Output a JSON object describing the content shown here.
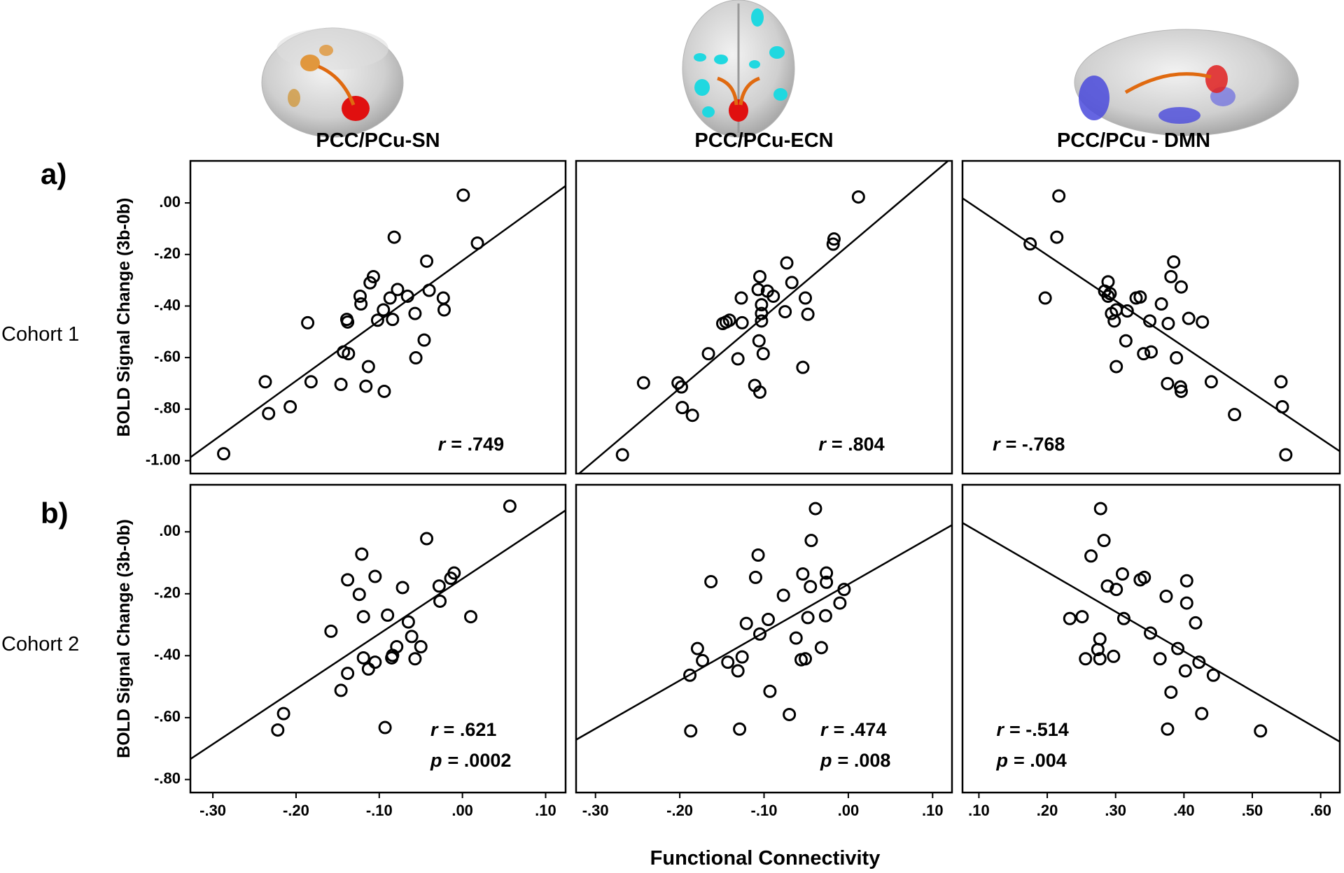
{
  "panel_labels": [
    "a)",
    "b)"
  ],
  "row_labels": [
    "Cohort 1",
    "Cohort 2"
  ],
  "y_axis_label": "BOLD Signal Change (3b-0b)",
  "x_axis_label": "Functional Connectivity",
  "chart_data": [
    {
      "type": "scatter",
      "title": "PCC/PCu-SN",
      "regression": true,
      "x": [
        0.001,
        0.018,
        -0.082,
        -0.043,
        -0.107,
        -0.111,
        -0.123,
        -0.078,
        -0.087,
        -0.066,
        -0.04,
        -0.023,
        -0.022,
        -0.095,
        -0.122,
        -0.139,
        -0.138,
        -0.102,
        -0.084,
        -0.057,
        -0.186,
        -0.046,
        -0.056,
        -0.143,
        -0.137,
        -0.113,
        -0.182,
        -0.237,
        -0.146,
        -0.116,
        -0.094,
        -0.207,
        -0.233,
        -0.287
      ],
      "y": [
        0.03,
        -0.156,
        -0.133,
        -0.226,
        -0.286,
        -0.31,
        -0.362,
        -0.336,
        -0.369,
        -0.362,
        -0.339,
        -0.369,
        -0.415,
        -0.415,
        -0.392,
        -0.452,
        -0.462,
        -0.455,
        -0.452,
        -0.429,
        -0.465,
        -0.532,
        -0.601,
        -0.578,
        -0.585,
        -0.635,
        -0.694,
        -0.694,
        -0.704,
        -0.711,
        -0.731,
        -0.791,
        -0.817,
        -0.973
      ],
      "xlim": [
        -0.327,
        0.124
      ],
      "ylim": [
        -1.05,
        0.163
      ],
      "yticks": [
        {
          "value": 0,
          "label": ".00"
        },
        {
          "value": -0.2,
          "label": "-.20"
        },
        {
          "value": -0.4,
          "label": "-.40"
        },
        {
          "value": -0.6,
          "label": "-.60"
        },
        {
          "value": -0.8,
          "label": "-.80"
        },
        {
          "value": -1.0,
          "label": "-1.00"
        }
      ],
      "annotations": [
        [
          "r",
          "= .749"
        ]
      ]
    },
    {
      "type": "scatter",
      "title": "PCC/PCu-ECN",
      "regression": true,
      "x": [
        0.012,
        -0.017,
        -0.018,
        -0.073,
        -0.105,
        -0.067,
        -0.107,
        -0.096,
        -0.089,
        -0.127,
        -0.103,
        -0.051,
        -0.103,
        -0.075,
        -0.048,
        -0.103,
        -0.126,
        -0.145,
        -0.141,
        -0.149,
        -0.106,
        -0.101,
        -0.166,
        -0.131,
        -0.054,
        -0.243,
        -0.202,
        -0.198,
        -0.197,
        -0.185,
        -0.111,
        -0.105,
        -0.268
      ],
      "y": [
        0.023,
        -0.14,
        -0.16,
        -0.233,
        -0.286,
        -0.309,
        -0.336,
        -0.342,
        -0.362,
        -0.369,
        -0.395,
        -0.369,
        -0.429,
        -0.422,
        -0.432,
        -0.458,
        -0.465,
        -0.462,
        -0.455,
        -0.468,
        -0.535,
        -0.585,
        -0.585,
        -0.605,
        -0.638,
        -0.698,
        -0.698,
        -0.714,
        -0.794,
        -0.824,
        -0.708,
        -0.734,
        -0.977
      ],
      "xlim": [
        -0.323,
        0.123
      ],
      "ylim": [
        -1.05,
        0.163
      ],
      "annotations": [
        [
          "r",
          "= .804"
        ]
      ]
    },
    {
      "type": "scatter",
      "title": "PCC/PCu - DMN",
      "regression": true,
      "x": [
        0.217,
        0.214,
        0.175,
        0.197,
        0.385,
        0.381,
        0.289,
        0.396,
        0.284,
        0.292,
        0.289,
        0.336,
        0.33,
        0.301,
        0.317,
        0.294,
        0.298,
        0.35,
        0.367,
        0.377,
        0.407,
        0.427,
        0.315,
        0.341,
        0.352,
        0.389,
        0.301,
        0.376,
        0.395,
        0.396,
        0.44,
        0.474,
        0.542,
        0.544,
        0.549
      ],
      "y": [
        0.027,
        -0.133,
        -0.159,
        -0.369,
        -0.229,
        -0.286,
        -0.306,
        -0.326,
        -0.342,
        -0.352,
        -0.362,
        -0.365,
        -0.369,
        -0.415,
        -0.419,
        -0.429,
        -0.458,
        -0.458,
        -0.392,
        -0.468,
        -0.448,
        -0.462,
        -0.535,
        -0.585,
        -0.578,
        -0.601,
        -0.635,
        -0.701,
        -0.714,
        -0.731,
        -0.694,
        -0.821,
        -0.694,
        -0.791,
        -0.977
      ],
      "xlim": [
        0.076,
        0.628
      ],
      "ylim": [
        -1.05,
        0.163
      ],
      "annotations": [
        [
          "r",
          "= -.768"
        ]
      ]
    },
    {
      "type": "scatter",
      "regression": true,
      "x": [
        0.057,
        -0.043,
        -0.01,
        -0.014,
        -0.028,
        -0.027,
        0.01,
        -0.121,
        -0.138,
        -0.105,
        -0.072,
        -0.124,
        -0.119,
        -0.09,
        -0.065,
        -0.061,
        -0.05,
        -0.057,
        -0.079,
        -0.084,
        -0.085,
        -0.158,
        -0.105,
        -0.119,
        -0.113,
        -0.138,
        -0.146,
        -0.215,
        -0.222,
        -0.093
      ],
      "y": [
        0.083,
        -0.022,
        -0.133,
        -0.15,
        -0.175,
        -0.224,
        -0.274,
        -0.072,
        -0.155,
        -0.144,
        -0.18,
        -0.202,
        -0.274,
        -0.269,
        -0.291,
        -0.338,
        -0.371,
        -0.41,
        -0.371,
        -0.399,
        -0.407,
        -0.321,
        -0.421,
        -0.407,
        -0.443,
        -0.457,
        -0.512,
        -0.587,
        -0.64,
        -0.632
      ],
      "xlim": [
        -0.327,
        0.124
      ],
      "ylim": [
        -0.842,
        0.152
      ],
      "xticks": [
        {
          "value": -0.3,
          "label": "-.30"
        },
        {
          "value": -0.2,
          "label": "-.20"
        },
        {
          "value": -0.1,
          "label": "-.10"
        },
        {
          "value": 0,
          "label": ".00"
        },
        {
          "value": 0.1,
          "label": ".10"
        }
      ],
      "yticks": [
        {
          "value": 0,
          "label": ".00"
        },
        {
          "value": -0.2,
          "label": "-.20"
        },
        {
          "value": -0.4,
          "label": "-.40"
        },
        {
          "value": -0.6,
          "label": "-.60"
        },
        {
          "value": -0.8,
          "label": "-.80"
        }
      ],
      "annotations": [
        [
          "r",
          "= .621"
        ],
        [
          "p",
          "= .0002"
        ]
      ]
    },
    {
      "type": "scatter",
      "regression": true,
      "x": [
        -0.039,
        -0.044,
        -0.107,
        -0.026,
        -0.054,
        -0.005,
        -0.026,
        -0.045,
        -0.11,
        -0.163,
        -0.077,
        -0.01,
        -0.095,
        -0.048,
        -0.027,
        -0.121,
        -0.105,
        -0.062,
        -0.032,
        -0.179,
        -0.051,
        -0.056,
        -0.126,
        -0.173,
        -0.143,
        -0.131,
        -0.188,
        -0.093,
        -0.07,
        -0.187,
        -0.129
      ],
      "y": [
        0.075,
        -0.028,
        -0.075,
        -0.133,
        -0.136,
        -0.186,
        -0.163,
        -0.177,
        -0.147,
        -0.161,
        -0.205,
        -0.23,
        -0.283,
        -0.277,
        -0.271,
        -0.296,
        -0.33,
        -0.343,
        -0.374,
        -0.377,
        -0.41,
        -0.413,
        -0.404,
        -0.416,
        -0.421,
        -0.449,
        -0.463,
        -0.515,
        -0.59,
        -0.643,
        -0.637
      ],
      "xlim": [
        -0.323,
        0.123
      ],
      "ylim": [
        -0.842,
        0.152
      ],
      "xticks": [
        {
          "value": -0.3,
          "label": "-.30"
        },
        {
          "value": -0.2,
          "label": "-.20"
        },
        {
          "value": -0.1,
          "label": "-.10"
        },
        {
          "value": 0,
          "label": ".00"
        },
        {
          "value": 0.1,
          "label": ".10"
        }
      ],
      "annotations": [
        [
          "r",
          "= .474"
        ],
        [
          "p",
          "= .008"
        ]
      ]
    },
    {
      "type": "scatter",
      "regression": true,
      "x": [
        0.278,
        0.283,
        0.264,
        0.31,
        0.342,
        0.336,
        0.404,
        0.288,
        0.301,
        0.374,
        0.404,
        0.417,
        0.233,
        0.251,
        0.312,
        0.351,
        0.277,
        0.274,
        0.391,
        0.365,
        0.256,
        0.277,
        0.297,
        0.422,
        0.402,
        0.443,
        0.381,
        0.426,
        0.376,
        0.512
      ],
      "y": [
        0.075,
        -0.028,
        -0.078,
        -0.136,
        -0.147,
        -0.155,
        -0.158,
        -0.175,
        -0.186,
        -0.208,
        -0.23,
        -0.294,
        -0.28,
        -0.274,
        -0.28,
        -0.327,
        -0.346,
        -0.38,
        -0.377,
        -0.41,
        -0.41,
        -0.41,
        -0.402,
        -0.421,
        -0.449,
        -0.463,
        -0.518,
        -0.587,
        -0.637,
        -0.643
      ],
      "xlim": [
        0.076,
        0.628
      ],
      "ylim": [
        -0.842,
        0.152
      ],
      "xticks": [
        {
          "value": 0.1,
          "label": ".10"
        },
        {
          "value": 0.2,
          "label": ".20"
        },
        {
          "value": 0.3,
          "label": ".30"
        },
        {
          "value": 0.4,
          "label": ".40"
        },
        {
          "value": 0.5,
          "label": ".50"
        },
        {
          "value": 0.6,
          "label": ".60"
        }
      ],
      "annotations": [
        [
          "r",
          "= -.514"
        ],
        [
          "p",
          "= .004"
        ]
      ]
    }
  ]
}
